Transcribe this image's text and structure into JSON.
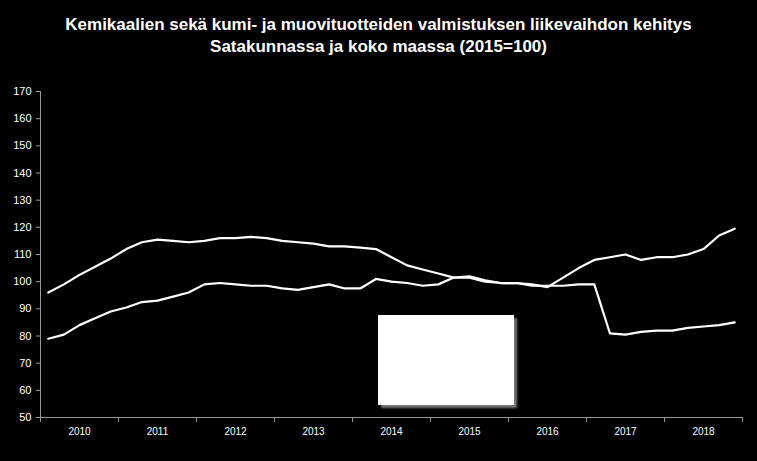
{
  "chart_data": {
    "type": "line",
    "title": "Kemikaalien sekä kumi- ja muovituotteiden valmistuksen liikevaihdon kehitys",
    "subtitle": "Satakunnassa ja koko maassa (2015=100)",
    "categories": [
      null,
      null,
      "2010",
      null,
      null,
      null,
      null,
      "2011",
      null,
      null,
      null,
      null,
      "2012",
      null,
      null,
      null,
      null,
      "2013",
      null,
      null,
      null,
      null,
      "2014",
      null,
      null,
      null,
      null,
      "2015",
      null,
      null,
      null,
      null,
      "2016",
      null,
      null,
      null,
      null,
      "2017",
      null,
      null,
      null,
      null,
      "2018",
      null,
      null
    ],
    "series": [
      {
        "color": "#ffffff",
        "values": [
          96,
          99,
          102.5,
          105.5,
          108.5,
          112,
          114.5,
          115.5,
          115,
          114.5,
          115,
          116,
          116,
          116.5,
          116,
          115,
          114.5,
          114,
          113,
          113,
          112.5,
          112,
          109,
          106,
          104.5,
          103,
          101.5,
          102,
          100.5,
          99.5,
          99.5,
          99,
          98,
          101.5,
          105,
          108,
          109,
          110,
          108,
          109,
          109,
          110,
          112,
          117,
          119.5
        ]
      },
      {
        "color": "#ffffff",
        "values": [
          79,
          80.5,
          84,
          86.5,
          89,
          90.5,
          92.5,
          93,
          94.5,
          96,
          99,
          99.5,
          99,
          98.5,
          98.5,
          97.5,
          97,
          98,
          99,
          97.5,
          97.5,
          101,
          100,
          99.5,
          98.5,
          99,
          101.5,
          101.5,
          100,
          99.5,
          99.5,
          98.5,
          98.5,
          98.5,
          99,
          99,
          81,
          80.5,
          81.5,
          82,
          82,
          83,
          83.5,
          84,
          85
        ]
      }
    ],
    "ylim": [
      50,
      170
    ],
    "yticks": [
      50,
      60,
      70,
      80,
      90,
      100,
      110,
      120,
      130,
      140,
      150,
      160,
      170
    ],
    "grid": false
  }
}
